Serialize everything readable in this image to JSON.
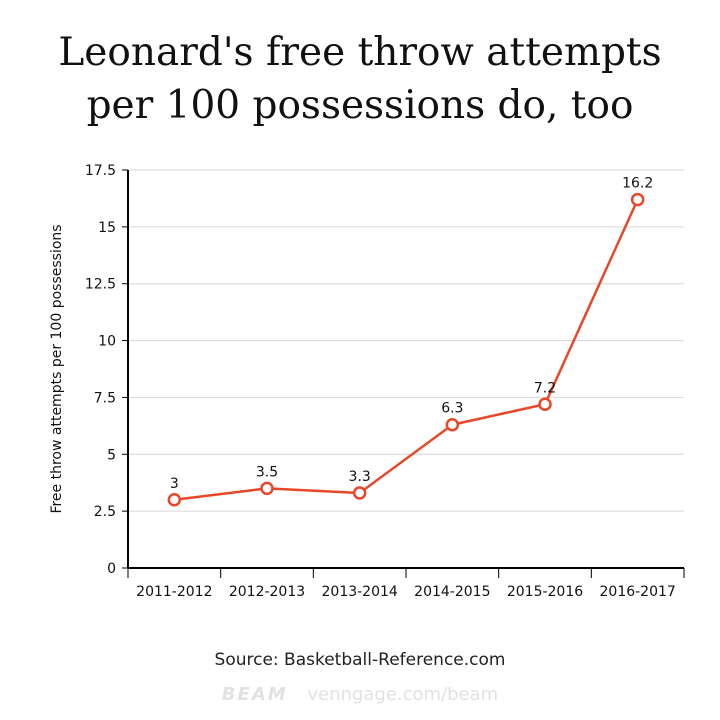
{
  "title_line1": "Leonard's free throw attempts",
  "title_line2": "per 100 possessions do, too",
  "source": "Source: Basketball-Reference.com",
  "brand": {
    "logo": "BEAM",
    "url": "venngage.com/beam"
  },
  "colors": {
    "line": "#e8472a",
    "grid": "#d6d6d6",
    "axis": "#000000"
  },
  "chart_data": {
    "type": "line",
    "title": "Leonard's free throw attempts per 100 possessions do, too",
    "xlabel": "",
    "ylabel": "Free throw attempts per 100 possessions",
    "categories": [
      "2011-2012",
      "2012-2013",
      "2013-2014",
      "2014-2015",
      "2015-2016",
      "2016-2017"
    ],
    "values": [
      3,
      3.5,
      3.3,
      6.3,
      7.2,
      16.2
    ],
    "data_labels": [
      "3",
      "3.5",
      "3.3",
      "6.3",
      "7.2",
      "16.2"
    ],
    "ylim": [
      0,
      17.5
    ],
    "yticks": [
      0,
      2.5,
      5,
      7.5,
      10,
      12.5,
      15,
      17.5
    ],
    "ytick_labels": [
      "0",
      "2.5",
      "5",
      "7.5",
      "10",
      "12.5",
      "15",
      "17.5"
    ],
    "grid": true,
    "legend": "none"
  }
}
